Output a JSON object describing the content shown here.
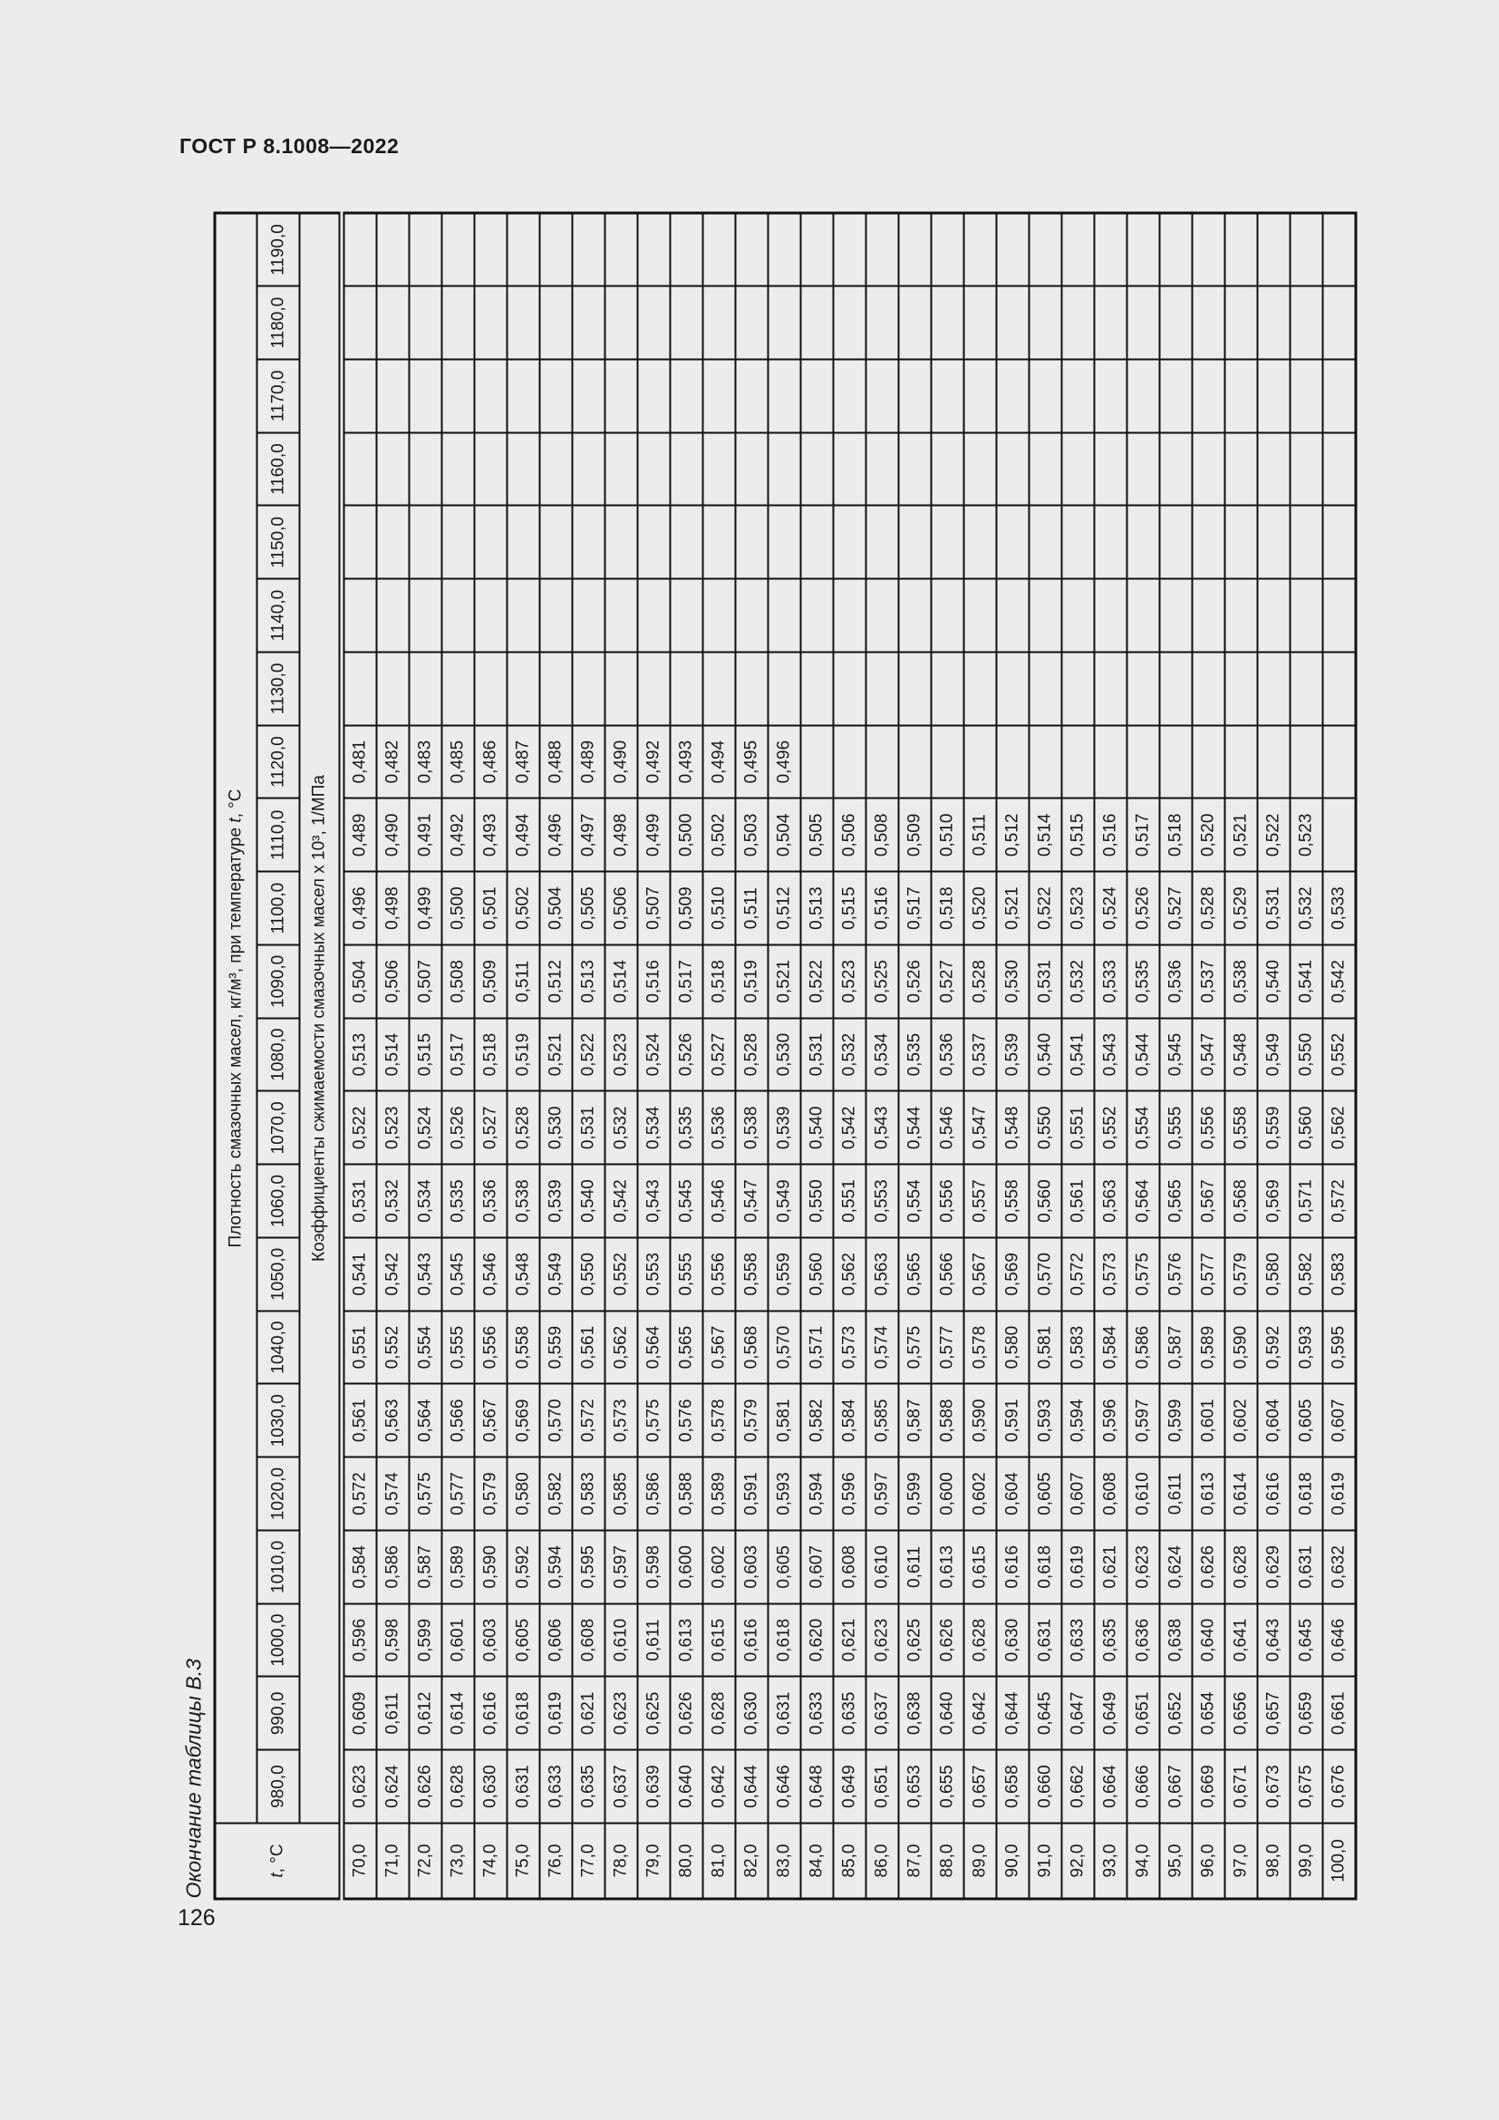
{
  "page": {
    "header": "ГОСТ Р 8.1008—2022",
    "table_caption": "Окончание таблицы В.3",
    "number": "126"
  },
  "table": {
    "corner_italic": "t",
    "corner_rest": ", °C",
    "density_header_prefix": "Плотность смазочных масел, кг/м³, при температуре ",
    "density_header_italic": "t",
    "density_header_suffix": ", °C",
    "coeff_header": "Коэффициенты сжимаемости смазочных масел х 10³, 1/МПа",
    "densities": [
      "980,0",
      "990,0",
      "1000,0",
      "1010,0",
      "1020,0",
      "1030,0",
      "1040,0",
      "1050,0",
      "1060,0",
      "1070,0",
      "1080,0",
      "1090,0",
      "1100,0",
      "1110,0",
      "1120,0",
      "1130,0",
      "1140,0",
      "1150,0",
      "1160,0",
      "1170,0",
      "1180,0",
      "1190,0"
    ],
    "rows": [
      {
        "t": "70,0",
        "v": [
          "0,623",
          "0,609",
          "0,596",
          "0,584",
          "0,572",
          "0,561",
          "0,551",
          "0,541",
          "0,531",
          "0,522",
          "0,513",
          "0,504",
          "0,496",
          "0,489",
          "0,481",
          "",
          "",
          "",
          "",
          "",
          "",
          ""
        ]
      },
      {
        "t": "71,0",
        "v": [
          "0,624",
          "0,611",
          "0,598",
          "0,586",
          "0,574",
          "0,563",
          "0,552",
          "0,542",
          "0,532",
          "0,523",
          "0,514",
          "0,506",
          "0,498",
          "0,490",
          "0,482",
          "",
          "",
          "",
          "",
          "",
          "",
          ""
        ]
      },
      {
        "t": "72,0",
        "v": [
          "0,626",
          "0,612",
          "0,599",
          "0,587",
          "0,575",
          "0,564",
          "0,554",
          "0,543",
          "0,534",
          "0,524",
          "0,515",
          "0,507",
          "0,499",
          "0,491",
          "0,483",
          "",
          "",
          "",
          "",
          "",
          "",
          ""
        ]
      },
      {
        "t": "73,0",
        "v": [
          "0,628",
          "0,614",
          "0,601",
          "0,589",
          "0,577",
          "0,566",
          "0,555",
          "0,545",
          "0,535",
          "0,526",
          "0,517",
          "0,508",
          "0,500",
          "0,492",
          "0,485",
          "",
          "",
          "",
          "",
          "",
          "",
          ""
        ]
      },
      {
        "t": "74,0",
        "v": [
          "0,630",
          "0,616",
          "0,603",
          "0,590",
          "0,579",
          "0,567",
          "0,556",
          "0,546",
          "0,536",
          "0,527",
          "0,518",
          "0,509",
          "0,501",
          "0,493",
          "0,486",
          "",
          "",
          "",
          "",
          "",
          "",
          ""
        ]
      },
      {
        "t": "75,0",
        "v": [
          "0,631",
          "0,618",
          "0,605",
          "0,592",
          "0,580",
          "0,569",
          "0,558",
          "0,548",
          "0,538",
          "0,528",
          "0,519",
          "0,511",
          "0,502",
          "0,494",
          "0,487",
          "",
          "",
          "",
          "",
          "",
          "",
          ""
        ]
      },
      {
        "t": "76,0",
        "v": [
          "0,633",
          "0,619",
          "0,606",
          "0,594",
          "0,582",
          "0,570",
          "0,559",
          "0,549",
          "0,539",
          "0,530",
          "0,521",
          "0,512",
          "0,504",
          "0,496",
          "0,488",
          "",
          "",
          "",
          "",
          "",
          "",
          ""
        ]
      },
      {
        "t": "77,0",
        "v": [
          "0,635",
          "0,621",
          "0,608",
          "0,595",
          "0,583",
          "0,572",
          "0,561",
          "0,550",
          "0,540",
          "0,531",
          "0,522",
          "0,513",
          "0,505",
          "0,497",
          "0,489",
          "",
          "",
          "",
          "",
          "",
          "",
          ""
        ]
      },
      {
        "t": "78,0",
        "v": [
          "0,637",
          "0,623",
          "0,610",
          "0,597",
          "0,585",
          "0,573",
          "0,562",
          "0,552",
          "0,542",
          "0,532",
          "0,523",
          "0,514",
          "0,506",
          "0,498",
          "0,490",
          "",
          "",
          "",
          "",
          "",
          "",
          ""
        ]
      },
      {
        "t": "79,0",
        "v": [
          "0,639",
          "0,625",
          "0,611",
          "0,598",
          "0,586",
          "0,575",
          "0,564",
          "0,553",
          "0,543",
          "0,534",
          "0,524",
          "0,516",
          "0,507",
          "0,499",
          "0,492",
          "",
          "",
          "",
          "",
          "",
          "",
          ""
        ]
      },
      {
        "t": "80,0",
        "v": [
          "0,640",
          "0,626",
          "0,613",
          "0,600",
          "0,588",
          "0,576",
          "0,565",
          "0,555",
          "0,545",
          "0,535",
          "0,526",
          "0,517",
          "0,509",
          "0,500",
          "0,493",
          "",
          "",
          "",
          "",
          "",
          "",
          ""
        ]
      },
      {
        "t": "81,0",
        "v": [
          "0,642",
          "0,628",
          "0,615",
          "0,602",
          "0,589",
          "0,578",
          "0,567",
          "0,556",
          "0,546",
          "0,536",
          "0,527",
          "0,518",
          "0,510",
          "0,502",
          "0,494",
          "",
          "",
          "",
          "",
          "",
          "",
          ""
        ]
      },
      {
        "t": "82,0",
        "v": [
          "0,644",
          "0,630",
          "0,616",
          "0,603",
          "0,591",
          "0,579",
          "0,568",
          "0,558",
          "0,547",
          "0,538",
          "0,528",
          "0,519",
          "0,511",
          "0,503",
          "0,495",
          "",
          "",
          "",
          "",
          "",
          "",
          ""
        ]
      },
      {
        "t": "83,0",
        "v": [
          "0,646",
          "0,631",
          "0,618",
          "0,605",
          "0,593",
          "0,581",
          "0,570",
          "0,559",
          "0,549",
          "0,539",
          "0,530",
          "0,521",
          "0,512",
          "0,504",
          "0,496",
          "",
          "",
          "",
          "",
          "",
          "",
          ""
        ]
      },
      {
        "t": "84,0",
        "v": [
          "0,648",
          "0,633",
          "0,620",
          "0,607",
          "0,594",
          "0,582",
          "0,571",
          "0,560",
          "0,550",
          "0,540",
          "0,531",
          "0,522",
          "0,513",
          "0,505",
          "",
          "",
          "",
          "",
          "",
          "",
          "",
          ""
        ]
      },
      {
        "t": "85,0",
        "v": [
          "0,649",
          "0,635",
          "0,621",
          "0,608",
          "0,596",
          "0,584",
          "0,573",
          "0,562",
          "0,551",
          "0,542",
          "0,532",
          "0,523",
          "0,515",
          "0,506",
          "",
          "",
          "",
          "",
          "",
          "",
          "",
          ""
        ]
      },
      {
        "t": "86,0",
        "v": [
          "0,651",
          "0,637",
          "0,623",
          "0,610",
          "0,597",
          "0,585",
          "0,574",
          "0,563",
          "0,553",
          "0,543",
          "0,534",
          "0,525",
          "0,516",
          "0,508",
          "",
          "",
          "",
          "",
          "",
          "",
          "",
          ""
        ]
      },
      {
        "t": "87,0",
        "v": [
          "0,653",
          "0,638",
          "0,625",
          "0,611",
          "0,599",
          "0,587",
          "0,575",
          "0,565",
          "0,554",
          "0,544",
          "0,535",
          "0,526",
          "0,517",
          "0,509",
          "",
          "",
          "",
          "",
          "",
          "",
          "",
          ""
        ]
      },
      {
        "t": "88,0",
        "v": [
          "0,655",
          "0,640",
          "0,626",
          "0,613",
          "0,600",
          "0,588",
          "0,577",
          "0,566",
          "0,556",
          "0,546",
          "0,536",
          "0,527",
          "0,518",
          "0,510",
          "",
          "",
          "",
          "",
          "",
          "",
          "",
          ""
        ]
      },
      {
        "t": "89,0",
        "v": [
          "0,657",
          "0,642",
          "0,628",
          "0,615",
          "0,602",
          "0,590",
          "0,578",
          "0,567",
          "0,557",
          "0,547",
          "0,537",
          "0,528",
          "0,520",
          "0,511",
          "",
          "",
          "",
          "",
          "",
          "",
          "",
          ""
        ]
      },
      {
        "t": "90,0",
        "v": [
          "0,658",
          "0,644",
          "0,630",
          "0,616",
          "0,604",
          "0,591",
          "0,580",
          "0,569",
          "0,558",
          "0,548",
          "0,539",
          "0,530",
          "0,521",
          "0,512",
          "",
          "",
          "",
          "",
          "",
          "",
          "",
          ""
        ]
      },
      {
        "t": "91,0",
        "v": [
          "0,660",
          "0,645",
          "0,631",
          "0,618",
          "0,605",
          "0,593",
          "0,581",
          "0,570",
          "0,560",
          "0,550",
          "0,540",
          "0,531",
          "0,522",
          "0,514",
          "",
          "",
          "",
          "",
          "",
          "",
          "",
          ""
        ]
      },
      {
        "t": "92,0",
        "v": [
          "0,662",
          "0,647",
          "0,633",
          "0,619",
          "0,607",
          "0,594",
          "0,583",
          "0,572",
          "0,561",
          "0,551",
          "0,541",
          "0,532",
          "0,523",
          "0,515",
          "",
          "",
          "",
          "",
          "",
          "",
          "",
          ""
        ]
      },
      {
        "t": "93,0",
        "v": [
          "0,664",
          "0,649",
          "0,635",
          "0,621",
          "0,608",
          "0,596",
          "0,584",
          "0,573",
          "0,563",
          "0,552",
          "0,543",
          "0,533",
          "0,524",
          "0,516",
          "",
          "",
          "",
          "",
          "",
          "",
          "",
          ""
        ]
      },
      {
        "t": "94,0",
        "v": [
          "0,666",
          "0,651",
          "0,636",
          "0,623",
          "0,610",
          "0,597",
          "0,586",
          "0,575",
          "0,564",
          "0,554",
          "0,544",
          "0,535",
          "0,526",
          "0,517",
          "",
          "",
          "",
          "",
          "",
          "",
          "",
          ""
        ]
      },
      {
        "t": "95,0",
        "v": [
          "0,667",
          "0,652",
          "0,638",
          "0,624",
          "0,611",
          "0,599",
          "0,587",
          "0,576",
          "0,565",
          "0,555",
          "0,545",
          "0,536",
          "0,527",
          "0,518",
          "",
          "",
          "",
          "",
          "",
          "",
          "",
          ""
        ]
      },
      {
        "t": "96,0",
        "v": [
          "0,669",
          "0,654",
          "0,640",
          "0,626",
          "0,613",
          "0,601",
          "0,589",
          "0,577",
          "0,567",
          "0,556",
          "0,547",
          "0,537",
          "0,528",
          "0,520",
          "",
          "",
          "",
          "",
          "",
          "",
          "",
          ""
        ]
      },
      {
        "t": "97,0",
        "v": [
          "0,671",
          "0,656",
          "0,641",
          "0,628",
          "0,614",
          "0,602",
          "0,590",
          "0,579",
          "0,568",
          "0,558",
          "0,548",
          "0,538",
          "0,529",
          "0,521",
          "",
          "",
          "",
          "",
          "",
          "",
          "",
          ""
        ]
      },
      {
        "t": "98,0",
        "v": [
          "0,673",
          "0,657",
          "0,643",
          "0,629",
          "0,616",
          "0,604",
          "0,592",
          "0,580",
          "0,569",
          "0,559",
          "0,549",
          "0,540",
          "0,531",
          "0,522",
          "",
          "",
          "",
          "",
          "",
          "",
          "",
          ""
        ]
      },
      {
        "t": "99,0",
        "v": [
          "0,675",
          "0,659",
          "0,645",
          "0,631",
          "0,618",
          "0,605",
          "0,593",
          "0,582",
          "0,571",
          "0,560",
          "0,550",
          "0,541",
          "0,532",
          "0,523",
          "",
          "",
          "",
          "",
          "",
          "",
          "",
          ""
        ]
      },
      {
        "t": "100,0",
        "v": [
          "0,676",
          "0,661",
          "0,646",
          "0,632",
          "0,619",
          "0,607",
          "0,595",
          "0,583",
          "0,572",
          "0,562",
          "0,552",
          "0,542",
          "0,533",
          "",
          "",
          "",
          "",
          "",
          "",
          "",
          "",
          ""
        ]
      }
    ]
  }
}
